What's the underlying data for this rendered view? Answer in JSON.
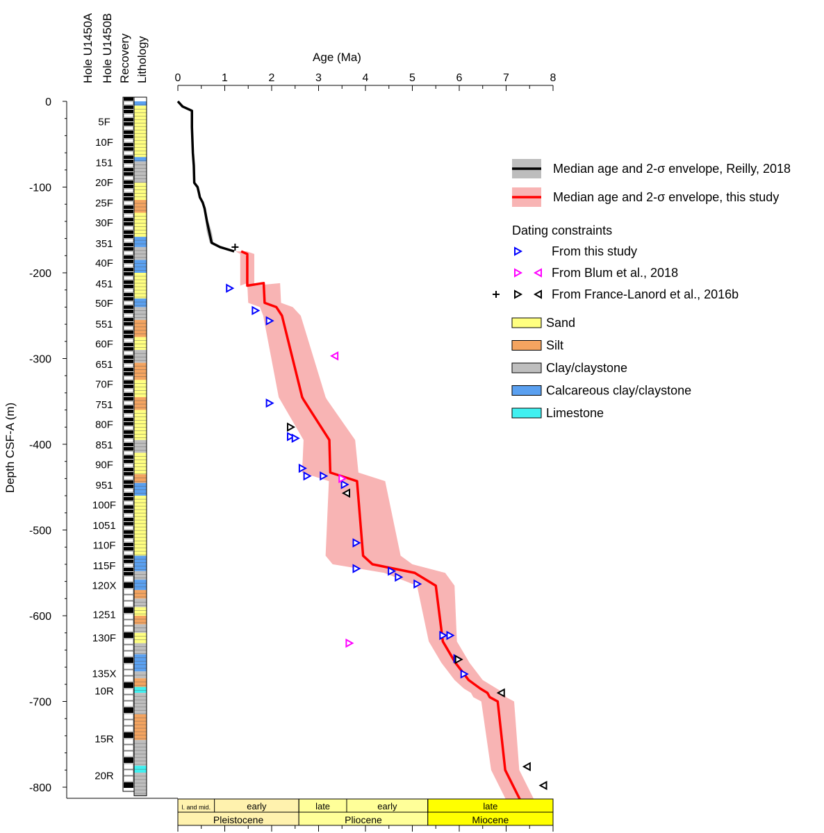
{
  "chart_data": {
    "type": "scatter",
    "xlabel": "Age (Ma)",
    "ylabel": "Depth CSF-A (m)",
    "xlim": [
      0,
      8
    ],
    "ylim": [
      -810,
      0
    ],
    "x_ticks": [
      0,
      1,
      2,
      3,
      4,
      5,
      6,
      7,
      8
    ],
    "y_ticks": [
      0,
      -100,
      -200,
      -300,
      -400,
      -500,
      -600,
      -700,
      -800
    ],
    "column_headers": [
      "Hole U1450A",
      "Hole U1450B",
      "Recovery",
      "Lithology"
    ],
    "core_labels": [
      {
        "label": "5F",
        "depth": -23
      },
      {
        "label": "10F",
        "depth": -47
      },
      {
        "label": "151",
        "depth": -71
      },
      {
        "label": "20F",
        "depth": -94
      },
      {
        "label": "25F",
        "depth": -118
      },
      {
        "label": "30F",
        "depth": -141
      },
      {
        "label": "351",
        "depth": -165
      },
      {
        "label": "40F",
        "depth": -188
      },
      {
        "label": "451",
        "depth": -212
      },
      {
        "label": "50F",
        "depth": -235
      },
      {
        "label": "551",
        "depth": -259
      },
      {
        "label": "60F",
        "depth": -282
      },
      {
        "label": "651",
        "depth": -306
      },
      {
        "label": "70F",
        "depth": -329
      },
      {
        "label": "751",
        "depth": -353
      },
      {
        "label": "80F",
        "depth": -376
      },
      {
        "label": "851",
        "depth": -400
      },
      {
        "label": "90F",
        "depth": -423
      },
      {
        "label": "951",
        "depth": -447
      },
      {
        "label": "100F",
        "depth": -470
      },
      {
        "label": "1051",
        "depth": -494
      },
      {
        "label": "110F",
        "depth": -517
      },
      {
        "label": "115F",
        "depth": -541
      },
      {
        "label": "120X",
        "depth": -564
      },
      {
        "label": "1251",
        "depth": -598
      },
      {
        "label": "130F",
        "depth": -625
      },
      {
        "label": "135X",
        "depth": -667
      },
      {
        "label": "10R",
        "depth": -687
      },
      {
        "label": "15R",
        "depth": -743
      },
      {
        "label": "20R",
        "depth": -786
      }
    ],
    "lithology_legend": [
      {
        "name": "Sand",
        "color": "#ffff80"
      },
      {
        "name": "Silt",
        "color": "#f4a460"
      },
      {
        "name": "Clay/claystone",
        "color": "#bebebe"
      },
      {
        "name": "Calcareous clay/claystone",
        "color": "#5aa0f0"
      },
      {
        "name": "Limestone",
        "color": "#40f0f0"
      }
    ],
    "lithology_column": [
      {
        "top": 0,
        "bottom": -5,
        "lith": "Calcareous clay/claystone"
      },
      {
        "top": -5,
        "bottom": -65,
        "lith": "Sand"
      },
      {
        "top": -65,
        "bottom": -70,
        "lith": "Calcareous clay/claystone"
      },
      {
        "top": -70,
        "bottom": -95,
        "lith": "Clay/claystone"
      },
      {
        "top": -95,
        "bottom": -115,
        "lith": "Sand"
      },
      {
        "top": -115,
        "bottom": -130,
        "lith": "Silt"
      },
      {
        "top": -130,
        "bottom": -158,
        "lith": "Sand"
      },
      {
        "top": -158,
        "bottom": -170,
        "lith": "Calcareous clay/claystone"
      },
      {
        "top": -170,
        "bottom": -185,
        "lith": "Clay/claystone"
      },
      {
        "top": -185,
        "bottom": -200,
        "lith": "Calcareous clay/claystone"
      },
      {
        "top": -200,
        "bottom": -230,
        "lith": "Sand"
      },
      {
        "top": -230,
        "bottom": -240,
        "lith": "Calcareous clay/claystone"
      },
      {
        "top": -240,
        "bottom": -255,
        "lith": "Clay/claystone"
      },
      {
        "top": -255,
        "bottom": -275,
        "lith": "Silt"
      },
      {
        "top": -275,
        "bottom": -290,
        "lith": "Sand"
      },
      {
        "top": -290,
        "bottom": -305,
        "lith": "Clay/claystone"
      },
      {
        "top": -305,
        "bottom": -325,
        "lith": "Silt"
      },
      {
        "top": -325,
        "bottom": -345,
        "lith": "Sand"
      },
      {
        "top": -345,
        "bottom": -360,
        "lith": "Silt"
      },
      {
        "top": -360,
        "bottom": -395,
        "lith": "Sand"
      },
      {
        "top": -395,
        "bottom": -410,
        "lith": "Clay/claystone"
      },
      {
        "top": -410,
        "bottom": -435,
        "lith": "Sand"
      },
      {
        "top": -435,
        "bottom": -445,
        "lith": "Silt"
      },
      {
        "top": -445,
        "bottom": -460,
        "lith": "Calcareous clay/claystone"
      },
      {
        "top": -460,
        "bottom": -530,
        "lith": "Sand"
      },
      {
        "top": -530,
        "bottom": -548,
        "lith": "Calcareous clay/claystone"
      },
      {
        "top": -548,
        "bottom": -558,
        "lith": "Clay/claystone"
      },
      {
        "top": -558,
        "bottom": -570,
        "lith": "Calcareous clay/claystone"
      },
      {
        "top": -570,
        "bottom": -580,
        "lith": "Silt"
      },
      {
        "top": -580,
        "bottom": -590,
        "lith": "Clay/claystone"
      },
      {
        "top": -590,
        "bottom": -600,
        "lith": "Sand"
      },
      {
        "top": -600,
        "bottom": -610,
        "lith": "Silt"
      },
      {
        "top": -610,
        "bottom": -620,
        "lith": "Clay/claystone"
      },
      {
        "top": -620,
        "bottom": -632,
        "lith": "Sand"
      },
      {
        "top": -632,
        "bottom": -645,
        "lith": "Clay/claystone"
      },
      {
        "top": -645,
        "bottom": -665,
        "lith": "Calcareous clay/claystone"
      },
      {
        "top": -665,
        "bottom": -673,
        "lith": "Clay/claystone"
      },
      {
        "top": -673,
        "bottom": -683,
        "lith": "Silt"
      },
      {
        "top": -683,
        "bottom": -690,
        "lith": "Limestone"
      },
      {
        "top": -690,
        "bottom": -715,
        "lith": "Clay/claystone"
      },
      {
        "top": -715,
        "bottom": -745,
        "lith": "Silt"
      },
      {
        "top": -745,
        "bottom": -775,
        "lith": "Clay/claystone"
      },
      {
        "top": -775,
        "bottom": -783,
        "lith": "Limestone"
      },
      {
        "top": -783,
        "bottom": -810,
        "lith": "Clay/claystone"
      }
    ],
    "series": [
      {
        "name": "Median age and 2-σ envelope, Reilly, 2018",
        "color": "#000000",
        "envelope_color": "#bdbdbd",
        "x": [
          0,
          0.1,
          0.3,
          0.3,
          0.32,
          0.34,
          0.35,
          0.42,
          0.45,
          0.47,
          0.53,
          0.57,
          0.62,
          0.66,
          0.68,
          0.72,
          0.9,
          1.2
        ],
        "y": [
          0,
          -6,
          -11,
          -30,
          -60,
          -75,
          -95,
          -100,
          -107,
          -112,
          -118,
          -125,
          -140,
          -150,
          -155,
          -165,
          -170,
          -175
        ],
        "envelope_half_width": [
          0.01,
          0.01,
          0.02,
          0.02,
          0.02,
          0.02,
          0.02,
          0.02,
          0.02,
          0.02,
          0.02,
          0.02,
          0.03,
          0.05,
          0.05,
          0.04,
          0.03,
          0.02
        ]
      },
      {
        "name": "Median age and 2-σ envelope, this study",
        "color": "#ff0000",
        "envelope_color": "#f8b4b4",
        "x": [
          1.35,
          1.48,
          1.48,
          1.83,
          1.85,
          2.1,
          2.22,
          2.65,
          2.68,
          3.23,
          3.25,
          3.82,
          3.95,
          4.15,
          5.05,
          5.5,
          5.65,
          5.92,
          6.2,
          6.45,
          6.6,
          6.65,
          6.82,
          6.98,
          7.3
        ],
        "y": [
          -175,
          -178,
          -215,
          -212,
          -235,
          -240,
          -250,
          -345,
          -348,
          -395,
          -433,
          -443,
          -530,
          -540,
          -550,
          -565,
          -630,
          -655,
          -675,
          -685,
          -690,
          -695,
          -700,
          -780,
          -815
        ],
        "envelope_half_width": [
          0.12,
          0.15,
          0.15,
          0.35,
          0.35,
          0.35,
          0.4,
          0.5,
          0.5,
          0.55,
          0.6,
          0.6,
          0.8,
          0.85,
          0.65,
          0.4,
          0.3,
          0.3,
          0.3,
          0.35,
          0.35,
          0.35,
          0.35,
          0.3,
          0.3
        ]
      }
    ],
    "dating_constraints_title": "Dating constraints",
    "constraints": [
      {
        "name": "From this study",
        "color": "#0000ff",
        "marker": "triangle-right",
        "points": [
          [
            1.1,
            -218
          ],
          [
            1.65,
            -244
          ],
          [
            1.95,
            -256
          ],
          [
            1.95,
            -352
          ],
          [
            2.4,
            -391
          ],
          [
            2.5,
            -393
          ],
          [
            2.65,
            -428
          ],
          [
            2.75,
            -437
          ],
          [
            3.1,
            -437
          ],
          [
            3.55,
            -447
          ],
          [
            3.8,
            -515
          ],
          [
            3.8,
            -545
          ],
          [
            4.55,
            -548
          ],
          [
            4.7,
            -555
          ],
          [
            5.1,
            -563
          ],
          [
            5.65,
            -623
          ],
          [
            5.8,
            -623
          ],
          [
            5.95,
            -650
          ],
          [
            6.1,
            -668
          ]
        ]
      },
      {
        "name": "From Blum et al., 2018",
        "color": "#ff00ff",
        "markers": [
          "triangle-right",
          "triangle-left"
        ],
        "points": [
          [
            3.35,
            -297,
            "triangle-left"
          ],
          [
            3.5,
            -440,
            "triangle-right"
          ],
          [
            3.65,
            -632,
            "triangle-right"
          ]
        ]
      },
      {
        "name": "From France-Lanord et al., 2016b",
        "color": "#000000",
        "markers": [
          "plus",
          "triangle-right",
          "triangle-left"
        ],
        "points": [
          [
            1.22,
            -170,
            "plus"
          ],
          [
            2.4,
            -380,
            "triangle-right"
          ],
          [
            3.6,
            -457,
            "triangle-left"
          ],
          [
            5.98,
            -651,
            "triangle-right"
          ],
          [
            6.9,
            -690,
            "triangle-left"
          ],
          [
            7.45,
            -776,
            "triangle-left"
          ],
          [
            7.8,
            -798,
            "triangle-left"
          ]
        ]
      }
    ],
    "timescale": {
      "subdivisions": [
        {
          "label": "l. and mid.",
          "from": 0,
          "to": 0.78
        },
        {
          "label": "early",
          "from": 0.78,
          "to": 2.58
        },
        {
          "label": "late",
          "from": 2.58,
          "to": 3.6
        },
        {
          "label": "early",
          "from": 3.6,
          "to": 5.33
        },
        {
          "label": "late",
          "from": 5.33,
          "to": 8
        }
      ],
      "epochs": [
        {
          "label": "Pleistocene",
          "from": 0,
          "to": 2.58,
          "color": "#fff2ae"
        },
        {
          "label": "Pliocene",
          "from": 2.58,
          "to": 5.33,
          "color": "#ffff99"
        },
        {
          "label": "Miocene",
          "from": 5.33,
          "to": 8,
          "color": "#ffff00"
        }
      ]
    }
  }
}
